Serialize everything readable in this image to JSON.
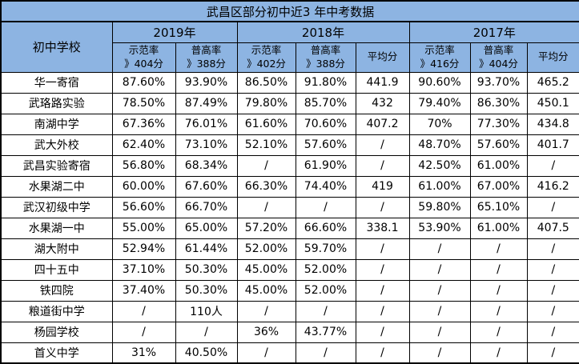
{
  "title": "武昌区部分初中近3 年中考数据",
  "header": {
    "school_col": "初中学校",
    "year_groups": [
      {
        "year": "2019年",
        "sub": [
          {
            "l1": "示范率",
            "l2": "》404分"
          },
          {
            "l1": "普高率",
            "l2": "》388分"
          }
        ]
      },
      {
        "year": "2018年",
        "sub": [
          {
            "l1": "示范率",
            "l2": "》402分"
          },
          {
            "l1": "普高率",
            "l2": "》388分"
          },
          {
            "l1": "平均分",
            "l2": ""
          }
        ]
      },
      {
        "year": "2017年",
        "sub": [
          {
            "l1": "示范率",
            "l2": "》416分"
          },
          {
            "l1": "普高率",
            "l2": "》404分"
          },
          {
            "l1": "平均分",
            "l2": ""
          }
        ]
      }
    ]
  },
  "rows": [
    {
      "school": "华一寄宿",
      "cells": [
        "87.60%",
        "93.90%",
        "86.50%",
        "91.80%",
        "441.9",
        "90.60%",
        "93.70%",
        "465.2"
      ]
    },
    {
      "school": "武珞路实验",
      "cells": [
        "78.50%",
        "87.49%",
        "79.80%",
        "85.70%",
        "432",
        "79.40%",
        "86.30%",
        "450.1"
      ]
    },
    {
      "school": "南湖中学",
      "cells": [
        "67.36%",
        "76.01%",
        "61.60%",
        "70.60%",
        "407.2",
        "70%",
        "77.30%",
        "434.8"
      ]
    },
    {
      "school": "武大外校",
      "cells": [
        "62.40%",
        "73.10%",
        "52.10%",
        "57.60%",
        "/",
        "48.70%",
        "57.60%",
        "401.7"
      ]
    },
    {
      "school": "武昌实验寄宿",
      "cells": [
        "56.80%",
        "68.34%",
        "/",
        "61.90%",
        "/",
        "42.50%",
        "61.00%",
        "/"
      ]
    },
    {
      "school": "水果湖二中",
      "cells": [
        "60.00%",
        "67.60%",
        "66.30%",
        "74.40%",
        "419",
        "61.00%",
        "67.00%",
        "416.2"
      ]
    },
    {
      "school": "武汉初级中学",
      "cells": [
        "56.60%",
        "66.70%",
        "/",
        "/",
        "/",
        "59.80%",
        "65.10%",
        "/"
      ]
    },
    {
      "school": "水果湖一中",
      "cells": [
        "55.00%",
        "65.00%",
        "57.20%",
        "66.60%",
        "338.1",
        "53.90%",
        "61.00%",
        "407.5"
      ]
    },
    {
      "school": "湖大附中",
      "cells": [
        "52.94%",
        "61.44%",
        "52.00%",
        "59.70%",
        "/",
        "/",
        "/",
        "/"
      ]
    },
    {
      "school": "四十五中",
      "cells": [
        "37.10%",
        "50.30%",
        "45.00%",
        "52.00%",
        "/",
        "/",
        "/",
        "/"
      ]
    },
    {
      "school": "铁四院",
      "cells": [
        "37.40%",
        "50.30%",
        "45.00%",
        "52.00%",
        "/",
        "/",
        "/",
        "/"
      ]
    },
    {
      "school": "粮道街中学",
      "cells": [
        "/",
        "110人",
        "/",
        "/",
        "/",
        "/",
        "/",
        "/"
      ]
    },
    {
      "school": "杨园学校",
      "cells": [
        "/",
        "/",
        "36%",
        "43.77%",
        "/",
        "/",
        "/",
        "/"
      ]
    },
    {
      "school": "首义中学",
      "cells": [
        "31%",
        "40.50%",
        "/",
        "/",
        "/",
        "/",
        "/",
        "/"
      ]
    }
  ],
  "colors": {
    "header_bg": "#8DB4E2",
    "row_bg": "#FFFFFF",
    "border": "#000000",
    "text": "#000000"
  }
}
